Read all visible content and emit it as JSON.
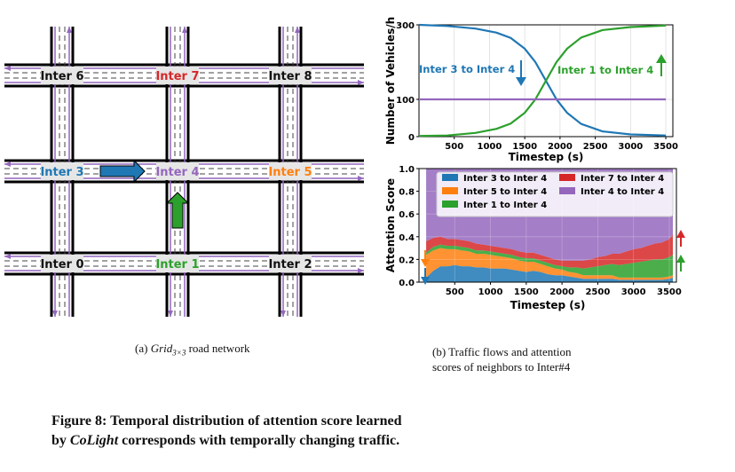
{
  "grid": {
    "intersections": [
      {
        "label": "Inter 6",
        "color": "#111111"
      },
      {
        "label": "Inter 7",
        "color": "#d62728"
      },
      {
        "label": "Inter 8",
        "color": "#111111"
      },
      {
        "label": "Inter 3",
        "color": "#1f77b4"
      },
      {
        "label": "Inter 4",
        "color": "#9467bd"
      },
      {
        "label": "Inter 5",
        "color": "#ff7f0e"
      },
      {
        "label": "Inter 0",
        "color": "#111111"
      },
      {
        "label": "Inter 1",
        "color": "#2ca02c"
      },
      {
        "label": "Inter 2",
        "color": "#111111"
      }
    ],
    "arrow_colors": {
      "from_inter3": "#1f77b4",
      "from_inter1": "#2ca02c"
    }
  },
  "captions": {
    "sub_a_prefix": "(a) ",
    "sub_a_main": "Grid",
    "sub_a_subscript": "3×3",
    "sub_a_suffix": " road network",
    "sub_b_line1": "(b)  Traffic flows and attention",
    "sub_b_line2": "scores of neighbors to Inter#4",
    "figure_line1": "Figure 8: Temporal distribution of attention score learned",
    "figure_line2_prefix": "by ",
    "figure_line2_italic": "CoLight",
    "figure_line2_suffix": " corresponds with temporally changing traffic."
  },
  "chart_data": [
    {
      "type": "line",
      "ylabel": "Number of Vehicles/h",
      "xlabel": "Timestep (s)",
      "xlim": [
        0,
        3600
      ],
      "ylim": [
        0,
        300
      ],
      "xticks": [
        500,
        1000,
        1500,
        2000,
        2500,
        3000,
        3500
      ],
      "yticks": [
        0,
        100,
        300
      ],
      "grid": true,
      "series": [
        {
          "label": "Inter 3 to Inter 4",
          "color": "#1f77b4",
          "x": [
            0,
            400,
            800,
            1100,
            1300,
            1500,
            1650,
            1800,
            1950,
            2100,
            2300,
            2600,
            3000,
            3500
          ],
          "y": [
            300,
            297,
            290,
            279,
            265,
            236,
            200,
            150,
            100,
            64,
            34,
            14,
            6,
            3
          ]
        },
        {
          "label": "Inter 1 to Inter 4",
          "color": "#2ca02c",
          "x": [
            0,
            400,
            800,
            1100,
            1300,
            1500,
            1650,
            1800,
            1950,
            2100,
            2300,
            2600,
            3000,
            3500
          ],
          "y": [
            2,
            3,
            10,
            21,
            35,
            64,
            100,
            150,
            200,
            236,
            266,
            286,
            294,
            298
          ]
        },
        {
          "label": "",
          "color": "#9467bd",
          "x": [
            0,
            3500
          ],
          "y": [
            100,
            100
          ]
        }
      ],
      "annotations": [
        {
          "text": "Inter 3 to Inter 4",
          "color": "#1f77b4",
          "arrow": "down"
        },
        {
          "text": "Inter 1 to Inter 4",
          "color": "#2ca02c",
          "arrow": "up"
        }
      ]
    },
    {
      "type": "area",
      "ylabel": "Attention Score",
      "xlabel": "Timestep (s)",
      "xlim": [
        0,
        3600
      ],
      "ylim": [
        0,
        1.0
      ],
      "xticks": [
        500,
        1000,
        1500,
        2000,
        2500,
        3000,
        3500
      ],
      "yticks": [
        0.0,
        0.2,
        0.4,
        0.6,
        0.8,
        1.0
      ],
      "legend": "top",
      "x": [
        100,
        200,
        300,
        400,
        500,
        600,
        700,
        800,
        900,
        1000,
        1100,
        1200,
        1300,
        1400,
        1500,
        1600,
        1700,
        1800,
        1900,
        2000,
        2100,
        2200,
        2300,
        2400,
        2500,
        2600,
        2700,
        2800,
        2900,
        3000,
        3100,
        3200,
        3300,
        3400,
        3500,
        3550
      ],
      "series": [
        {
          "name": "Inter 3 to Inter 4",
          "color": "#1f77b4",
          "values": [
            0.04,
            0.1,
            0.14,
            0.14,
            0.15,
            0.14,
            0.14,
            0.13,
            0.13,
            0.12,
            0.12,
            0.12,
            0.11,
            0.1,
            0.09,
            0.1,
            0.09,
            0.07,
            0.06,
            0.06,
            0.05,
            0.04,
            0.03,
            0.03,
            0.03,
            0.03,
            0.03,
            0.02,
            0.02,
            0.02,
            0.02,
            0.02,
            0.02,
            0.02,
            0.03,
            0.04
          ]
        },
        {
          "name": "Inter 5 to Inter 4",
          "color": "#ff7f0e",
          "values": [
            0.2,
            0.18,
            0.16,
            0.15,
            0.14,
            0.14,
            0.13,
            0.12,
            0.12,
            0.12,
            0.11,
            0.1,
            0.1,
            0.09,
            0.09,
            0.08,
            0.07,
            0.07,
            0.06,
            0.05,
            0.04,
            0.04,
            0.03,
            0.03,
            0.03,
            0.03,
            0.03,
            0.02,
            0.02,
            0.02,
            0.02,
            0.02,
            0.02,
            0.02,
            0.02,
            0.02
          ]
        },
        {
          "name": "Inter 1 to Inter 4",
          "color": "#2ca02c",
          "values": [
            0.02,
            0.03,
            0.03,
            0.03,
            0.03,
            0.03,
            0.03,
            0.03,
            0.03,
            0.03,
            0.03,
            0.03,
            0.03,
            0.03,
            0.03,
            0.03,
            0.03,
            0.03,
            0.03,
            0.03,
            0.04,
            0.05,
            0.06,
            0.07,
            0.08,
            0.09,
            0.1,
            0.11,
            0.12,
            0.13,
            0.14,
            0.15,
            0.16,
            0.16,
            0.17,
            0.18
          ]
        },
        {
          "name": "Inter 7 to Inter 4",
          "color": "#d62728",
          "values": [
            0.1,
            0.08,
            0.07,
            0.06,
            0.06,
            0.06,
            0.06,
            0.06,
            0.05,
            0.05,
            0.05,
            0.05,
            0.05,
            0.05,
            0.05,
            0.05,
            0.05,
            0.05,
            0.05,
            0.05,
            0.06,
            0.06,
            0.07,
            0.07,
            0.08,
            0.08,
            0.09,
            0.1,
            0.11,
            0.12,
            0.12,
            0.13,
            0.14,
            0.15,
            0.16,
            0.18
          ]
        },
        {
          "name": "Inter 4 to Inter 4",
          "color": "#9467bd",
          "values": [
            0.64,
            0.61,
            0.6,
            0.62,
            0.62,
            0.63,
            0.64,
            0.66,
            0.67,
            0.68,
            0.69,
            0.7,
            0.71,
            0.73,
            0.74,
            0.74,
            0.76,
            0.78,
            0.8,
            0.81,
            0.81,
            0.81,
            0.81,
            0.8,
            0.78,
            0.77,
            0.75,
            0.75,
            0.73,
            0.71,
            0.7,
            0.68,
            0.66,
            0.65,
            0.62,
            0.58
          ]
        }
      ],
      "annotations": [
        {
          "color": "#ff7f0e",
          "arrow": "down"
        },
        {
          "color": "#1f77b4",
          "arrow": "down"
        },
        {
          "color": "#d62728",
          "arrow": "up"
        },
        {
          "color": "#2ca02c",
          "arrow": "up"
        }
      ]
    }
  ]
}
